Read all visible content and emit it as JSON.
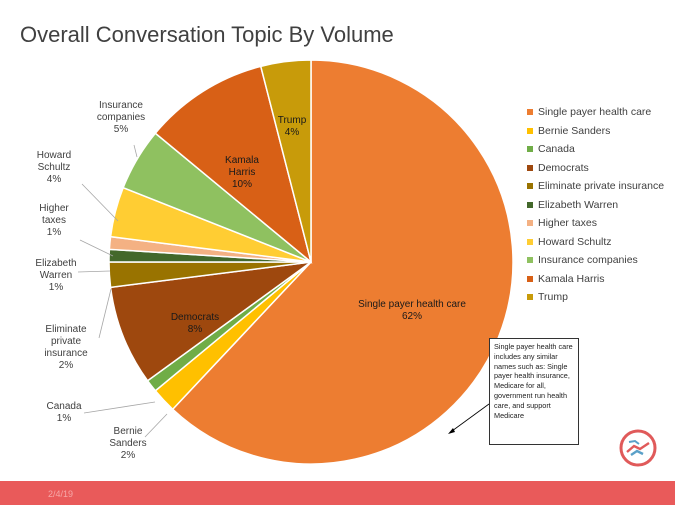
{
  "slide": {
    "title": "Overall Conversation Topic By Volume",
    "footer_date": "2/4/19",
    "footer_color": "#e95a5a"
  },
  "note": {
    "text": "Single payer health care includes any similar names such as: Single payer health insurance, Medicare for all, government run health care, and support Medicare"
  },
  "logo": {
    "icon": "handshake-logo-icon",
    "color": "#e05a5a"
  },
  "chart_data": {
    "type": "pie",
    "title": "Overall Conversation Topic By Volume",
    "start_angle_deg": 0,
    "direction": "clockwise",
    "legend_position": "right",
    "slices": [
      {
        "label": "Single payer health care",
        "value": 62,
        "display": "62%",
        "color": "#ed7d31"
      },
      {
        "label": "Bernie Sanders",
        "value": 2,
        "display": "2%",
        "color": "#ffc000"
      },
      {
        "label": "Canada",
        "value": 1,
        "display": "1%",
        "color": "#70ad47"
      },
      {
        "label": "Democrats",
        "value": 8,
        "display": "8%",
        "color": "#9e480e"
      },
      {
        "label": "Eliminate private insurance",
        "value": 2,
        "display": "2%",
        "color": "#997300"
      },
      {
        "label": "Elizabeth Warren",
        "value": 1,
        "display": "1%",
        "color": "#43682b"
      },
      {
        "label": "Higher taxes",
        "value": 1,
        "display": "1%",
        "color": "#f4b183"
      },
      {
        "label": "Howard Schultz",
        "value": 4,
        "display": "4%",
        "color": "#ffcd33"
      },
      {
        "label": "Insurance companies",
        "value": 5,
        "display": "5%",
        "color": "#8fc160"
      },
      {
        "label": "Kamala Harris",
        "value": 10,
        "display": "10%",
        "color": "#d86016"
      },
      {
        "label": "Trump",
        "value": 4,
        "display": "4%",
        "color": "#c89b0a"
      }
    ]
  }
}
